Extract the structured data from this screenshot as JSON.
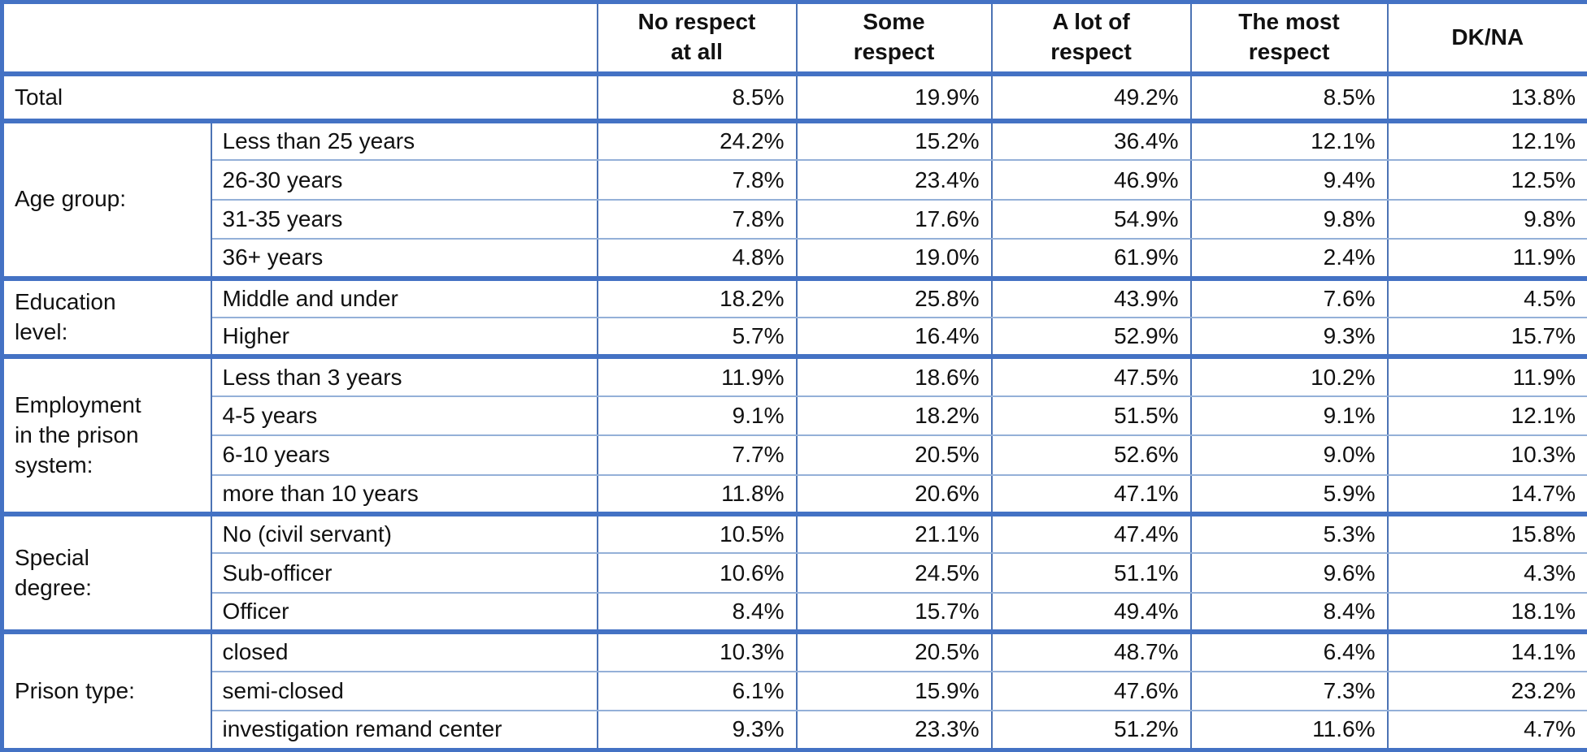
{
  "colors": {
    "frame_border": "#4472C4",
    "thin_row_border": "#94B0D8",
    "column_border": "#4C73B4",
    "text": "#111111",
    "background": "#FFFFFF"
  },
  "table": {
    "header": {
      "corner": "",
      "columns": [
        "No respect\nat all",
        "Some\nrespect",
        "A lot of\nrespect",
        "The most\nrespect",
        "DK/NA"
      ]
    },
    "total_row": {
      "label": "Total",
      "values": [
        "8.5%",
        "19.9%",
        "49.2%",
        "8.5%",
        "13.8%"
      ]
    },
    "groups": [
      {
        "label": "Age group:",
        "rows": [
          {
            "label": "Less than 25 years",
            "values": [
              "24.2%",
              "15.2%",
              "36.4%",
              "12.1%",
              "12.1%"
            ]
          },
          {
            "label": "26-30 years",
            "values": [
              "7.8%",
              "23.4%",
              "46.9%",
              "9.4%",
              "12.5%"
            ]
          },
          {
            "label": "31-35 years",
            "values": [
              "7.8%",
              "17.6%",
              "54.9%",
              "9.8%",
              "9.8%"
            ]
          },
          {
            "label": "36+ years",
            "values": [
              "4.8%",
              "19.0%",
              "61.9%",
              "2.4%",
              "11.9%"
            ]
          }
        ]
      },
      {
        "label": "Education\nlevel:",
        "rows": [
          {
            "label": "Middle and under",
            "values": [
              "18.2%",
              "25.8%",
              "43.9%",
              "7.6%",
              "4.5%"
            ]
          },
          {
            "label": "Higher",
            "values": [
              "5.7%",
              "16.4%",
              "52.9%",
              "9.3%",
              "15.7%"
            ]
          }
        ]
      },
      {
        "label": "Employment\nin the prison\nsystem:",
        "rows": [
          {
            "label": "Less than 3 years",
            "values": [
              "11.9%",
              "18.6%",
              "47.5%",
              "10.2%",
              "11.9%"
            ]
          },
          {
            "label": "4-5 years",
            "values": [
              "9.1%",
              "18.2%",
              "51.5%",
              "9.1%",
              "12.1%"
            ]
          },
          {
            "label": "6-10 years",
            "values": [
              "7.7%",
              "20.5%",
              "52.6%",
              "9.0%",
              "10.3%"
            ]
          },
          {
            "label": "more than 10 years",
            "values": [
              "11.8%",
              "20.6%",
              "47.1%",
              "5.9%",
              "14.7%"
            ]
          }
        ]
      },
      {
        "label": "Special\ndegree:",
        "rows": [
          {
            "label": "No (civil servant)",
            "values": [
              "10.5%",
              "21.1%",
              "47.4%",
              "5.3%",
              "15.8%"
            ]
          },
          {
            "label": "Sub-officer",
            "values": [
              "10.6%",
              "24.5%",
              "51.1%",
              "9.6%",
              "4.3%"
            ]
          },
          {
            "label": "Officer",
            "values": [
              "8.4%",
              "15.7%",
              "49.4%",
              "8.4%",
              "18.1%"
            ]
          }
        ]
      },
      {
        "label": "Prison type:",
        "rows": [
          {
            "label": "closed",
            "values": [
              "10.3%",
              "20.5%",
              "48.7%",
              "6.4%",
              "14.1%"
            ]
          },
          {
            "label": "semi-closed",
            "values": [
              "6.1%",
              "15.9%",
              "47.6%",
              "7.3%",
              "23.2%"
            ]
          },
          {
            "label": "investigation remand center",
            "values": [
              "9.3%",
              "23.3%",
              "51.2%",
              "11.6%",
              "4.7%"
            ]
          }
        ]
      }
    ]
  },
  "chart_data": {
    "type": "table",
    "title": "",
    "units": "percent",
    "columns": [
      "No respect at all",
      "Some respect",
      "A lot of respect",
      "The most respect",
      "DK/NA"
    ],
    "rows": [
      {
        "group": "",
        "category": "Total",
        "values": [
          8.5,
          19.9,
          49.2,
          8.5,
          13.8
        ]
      },
      {
        "group": "Age group",
        "category": "Less than 25 years",
        "values": [
          24.2,
          15.2,
          36.4,
          12.1,
          12.1
        ]
      },
      {
        "group": "Age group",
        "category": "26-30 years",
        "values": [
          7.8,
          23.4,
          46.9,
          9.4,
          12.5
        ]
      },
      {
        "group": "Age group",
        "category": "31-35 years",
        "values": [
          7.8,
          17.6,
          54.9,
          9.8,
          9.8
        ]
      },
      {
        "group": "Age group",
        "category": "36+ years",
        "values": [
          4.8,
          19.0,
          61.9,
          2.4,
          11.9
        ]
      },
      {
        "group": "Education level",
        "category": "Middle and under",
        "values": [
          18.2,
          25.8,
          43.9,
          7.6,
          4.5
        ]
      },
      {
        "group": "Education level",
        "category": "Higher",
        "values": [
          5.7,
          16.4,
          52.9,
          9.3,
          15.7
        ]
      },
      {
        "group": "Employment in the prison system",
        "category": "Less than 3 years",
        "values": [
          11.9,
          18.6,
          47.5,
          10.2,
          11.9
        ]
      },
      {
        "group": "Employment in the prison system",
        "category": "4-5 years",
        "values": [
          9.1,
          18.2,
          51.5,
          9.1,
          12.1
        ]
      },
      {
        "group": "Employment in the prison system",
        "category": "6-10 years",
        "values": [
          7.7,
          20.5,
          52.6,
          9.0,
          10.3
        ]
      },
      {
        "group": "Employment in the prison system",
        "category": "more than 10 years",
        "values": [
          11.8,
          20.6,
          47.1,
          5.9,
          14.7
        ]
      },
      {
        "group": "Special degree",
        "category": "No (civil servant)",
        "values": [
          10.5,
          21.1,
          47.4,
          5.3,
          15.8
        ]
      },
      {
        "group": "Special degree",
        "category": "Sub-officer",
        "values": [
          10.6,
          24.5,
          51.1,
          9.6,
          4.3
        ]
      },
      {
        "group": "Special degree",
        "category": "Officer",
        "values": [
          8.4,
          15.7,
          49.4,
          8.4,
          18.1
        ]
      },
      {
        "group": "Prison type",
        "category": "closed",
        "values": [
          10.3,
          20.5,
          48.7,
          6.4,
          14.1
        ]
      },
      {
        "group": "Prison type",
        "category": "semi-closed",
        "values": [
          6.1,
          15.9,
          47.6,
          7.3,
          23.2
        ]
      },
      {
        "group": "Prison type",
        "category": "investigation remand center",
        "values": [
          9.3,
          23.3,
          51.2,
          11.6,
          4.7
        ]
      }
    ]
  }
}
